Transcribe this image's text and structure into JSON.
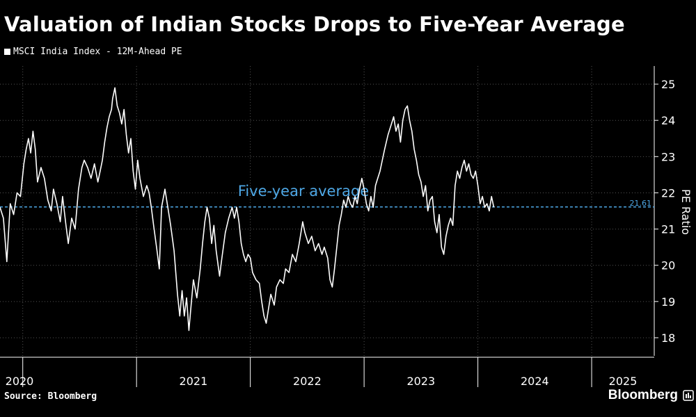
{
  "title": "Valuation of Indian Stocks Drops to Five-Year Average",
  "source": "Source: Bloomberg",
  "brand": "Bloomberg",
  "colors": {
    "background": "#000000",
    "series": "#ffffff",
    "average": "#4ea8e6",
    "grid": "#555555"
  },
  "chart_data": {
    "type": "line",
    "title": "Valuation of Indian Stocks Drops to Five-Year Average",
    "ylabel": "PE Ratio",
    "ylim": [
      17.5,
      25.5
    ],
    "yticks": [
      18,
      19,
      20,
      21,
      22,
      23,
      24,
      25
    ],
    "xlim": [
      2019.8,
      2025.55
    ],
    "x_tick_labels": [
      "2020",
      "2021",
      "2022",
      "2023",
      "2024",
      "2025"
    ],
    "grid": true,
    "legend_position": "top-left",
    "series": [
      {
        "name": "MSCI India Index - 12M-Ahead PE",
        "points": [
          [
            2019.8,
            21.6
          ],
          [
            2019.83,
            21.3
          ],
          [
            2019.86,
            20.1
          ],
          [
            2019.89,
            21.7
          ],
          [
            2019.92,
            21.4
          ],
          [
            2019.95,
            22.0
          ],
          [
            2019.98,
            21.9
          ],
          [
            2020.01,
            22.8
          ],
          [
            2020.03,
            23.2
          ],
          [
            2020.05,
            23.5
          ],
          [
            2020.07,
            23.1
          ],
          [
            2020.09,
            23.7
          ],
          [
            2020.11,
            23.2
          ],
          [
            2020.13,
            22.3
          ],
          [
            2020.16,
            22.7
          ],
          [
            2020.19,
            22.4
          ],
          [
            2020.22,
            21.8
          ],
          [
            2020.25,
            21.5
          ],
          [
            2020.27,
            22.1
          ],
          [
            2020.3,
            21.7
          ],
          [
            2020.33,
            21.2
          ],
          [
            2020.35,
            21.9
          ],
          [
            2020.38,
            21.1
          ],
          [
            2020.4,
            20.6
          ],
          [
            2020.43,
            21.3
          ],
          [
            2020.46,
            21.0
          ],
          [
            2020.49,
            22.1
          ],
          [
            2020.52,
            22.7
          ],
          [
            2020.54,
            22.9
          ],
          [
            2020.57,
            22.7
          ],
          [
            2020.6,
            22.4
          ],
          [
            2020.63,
            22.8
          ],
          [
            2020.66,
            22.3
          ],
          [
            2020.68,
            22.6
          ],
          [
            2020.7,
            22.9
          ],
          [
            2020.72,
            23.4
          ],
          [
            2020.74,
            23.8
          ],
          [
            2020.76,
            24.1
          ],
          [
            2020.78,
            24.3
          ],
          [
            2020.79,
            24.6
          ],
          [
            2020.81,
            24.9
          ],
          [
            2020.83,
            24.4
          ],
          [
            2020.85,
            24.2
          ],
          [
            2020.87,
            23.9
          ],
          [
            2020.89,
            24.3
          ],
          [
            2020.91,
            23.6
          ],
          [
            2020.93,
            23.1
          ],
          [
            2020.95,
            23.5
          ],
          [
            2020.97,
            22.6
          ],
          [
            2020.99,
            22.1
          ],
          [
            2021.01,
            22.9
          ],
          [
            2021.03,
            22.4
          ],
          [
            2021.06,
            21.9
          ],
          [
            2021.09,
            22.2
          ],
          [
            2021.11,
            22.0
          ],
          [
            2021.13,
            21.6
          ],
          [
            2021.15,
            21.1
          ],
          [
            2021.18,
            20.4
          ],
          [
            2021.2,
            19.9
          ],
          [
            2021.22,
            21.6
          ],
          [
            2021.25,
            22.1
          ],
          [
            2021.27,
            21.7
          ],
          [
            2021.3,
            21.1
          ],
          [
            2021.33,
            20.4
          ],
          [
            2021.36,
            19.2
          ],
          [
            2021.38,
            18.6
          ],
          [
            2021.4,
            19.3
          ],
          [
            2021.42,
            18.6
          ],
          [
            2021.44,
            19.1
          ],
          [
            2021.46,
            18.2
          ],
          [
            2021.48,
            18.9
          ],
          [
            2021.5,
            19.6
          ],
          [
            2021.53,
            19.1
          ],
          [
            2021.56,
            19.9
          ],
          [
            2021.58,
            20.6
          ],
          [
            2021.6,
            21.2
          ],
          [
            2021.62,
            21.6
          ],
          [
            2021.64,
            21.3
          ],
          [
            2021.66,
            20.6
          ],
          [
            2021.68,
            21.1
          ],
          [
            2021.7,
            20.4
          ],
          [
            2021.73,
            19.7
          ],
          [
            2021.75,
            20.2
          ],
          [
            2021.78,
            20.9
          ],
          [
            2021.81,
            21.3
          ],
          [
            2021.84,
            21.6
          ],
          [
            2021.86,
            21.3
          ],
          [
            2021.88,
            21.6
          ],
          [
            2021.9,
            21.2
          ],
          [
            2021.92,
            20.6
          ],
          [
            2021.94,
            20.3
          ],
          [
            2021.96,
            20.1
          ],
          [
            2021.98,
            20.3
          ],
          [
            2022.0,
            20.2
          ],
          [
            2022.02,
            19.8
          ],
          [
            2022.05,
            19.6
          ],
          [
            2022.08,
            19.5
          ],
          [
            2022.1,
            19.0
          ],
          [
            2022.12,
            18.6
          ],
          [
            2022.14,
            18.4
          ],
          [
            2022.16,
            18.8
          ],
          [
            2022.18,
            19.2
          ],
          [
            2022.21,
            18.9
          ],
          [
            2022.23,
            19.4
          ],
          [
            2022.26,
            19.6
          ],
          [
            2022.29,
            19.5
          ],
          [
            2022.31,
            19.9
          ],
          [
            2022.34,
            19.8
          ],
          [
            2022.37,
            20.3
          ],
          [
            2022.4,
            20.1
          ],
          [
            2022.43,
            20.6
          ],
          [
            2022.46,
            21.2
          ],
          [
            2022.48,
            20.9
          ],
          [
            2022.51,
            20.6
          ],
          [
            2022.54,
            20.8
          ],
          [
            2022.57,
            20.4
          ],
          [
            2022.6,
            20.6
          ],
          [
            2022.63,
            20.3
          ],
          [
            2022.65,
            20.5
          ],
          [
            2022.68,
            20.2
          ],
          [
            2022.7,
            19.6
          ],
          [
            2022.72,
            19.4
          ],
          [
            2022.74,
            19.9
          ],
          [
            2022.76,
            20.5
          ],
          [
            2022.78,
            21.1
          ],
          [
            2022.8,
            21.4
          ],
          [
            2022.82,
            21.8
          ],
          [
            2022.84,
            21.6
          ],
          [
            2022.86,
            21.9
          ],
          [
            2022.88,
            21.7
          ],
          [
            2022.9,
            21.6
          ],
          [
            2022.92,
            21.9
          ],
          [
            2022.94,
            21.7
          ],
          [
            2022.96,
            22.1
          ],
          [
            2022.98,
            22.4
          ],
          [
            2023.0,
            22.1
          ],
          [
            2023.02,
            21.7
          ],
          [
            2023.04,
            21.5
          ],
          [
            2023.06,
            21.9
          ],
          [
            2023.08,
            21.6
          ],
          [
            2023.1,
            22.2
          ],
          [
            2023.12,
            22.4
          ],
          [
            2023.14,
            22.6
          ],
          [
            2023.16,
            22.9
          ],
          [
            2023.18,
            23.2
          ],
          [
            2023.21,
            23.6
          ],
          [
            2023.24,
            23.9
          ],
          [
            2023.26,
            24.1
          ],
          [
            2023.28,
            23.7
          ],
          [
            2023.3,
            23.9
          ],
          [
            2023.32,
            23.4
          ],
          [
            2023.34,
            24.0
          ],
          [
            2023.36,
            24.3
          ],
          [
            2023.38,
            24.4
          ],
          [
            2023.4,
            24.0
          ],
          [
            2023.42,
            23.7
          ],
          [
            2023.44,
            23.2
          ],
          [
            2023.46,
            22.9
          ],
          [
            2023.48,
            22.5
          ],
          [
            2023.5,
            22.3
          ],
          [
            2023.52,
            21.9
          ],
          [
            2023.54,
            22.2
          ],
          [
            2023.56,
            21.5
          ],
          [
            2023.58,
            21.8
          ],
          [
            2023.6,
            21.9
          ],
          [
            2023.62,
            21.2
          ],
          [
            2023.64,
            20.9
          ],
          [
            2023.66,
            21.4
          ],
          [
            2023.68,
            20.5
          ],
          [
            2023.7,
            20.3
          ],
          [
            2023.72,
            20.8
          ],
          [
            2023.74,
            21.1
          ],
          [
            2023.76,
            21.3
          ],
          [
            2023.78,
            21.1
          ],
          [
            2023.8,
            22.2
          ],
          [
            2023.82,
            22.6
          ],
          [
            2023.84,
            22.4
          ],
          [
            2023.86,
            22.7
          ],
          [
            2023.88,
            22.9
          ],
          [
            2023.9,
            22.6
          ],
          [
            2023.92,
            22.8
          ],
          [
            2023.94,
            22.5
          ],
          [
            2023.96,
            22.4
          ],
          [
            2023.98,
            22.6
          ],
          [
            2024.0,
            22.2
          ],
          [
            2024.02,
            21.7
          ],
          [
            2024.04,
            21.9
          ],
          [
            2024.06,
            21.6
          ],
          [
            2024.08,
            21.7
          ],
          [
            2024.1,
            21.5
          ],
          [
            2024.12,
            21.9
          ],
          [
            2024.14,
            21.6
          ]
        ]
      }
    ],
    "average": {
      "value": 21.61,
      "value_label": "21.61",
      "label": "Five-year average"
    }
  }
}
